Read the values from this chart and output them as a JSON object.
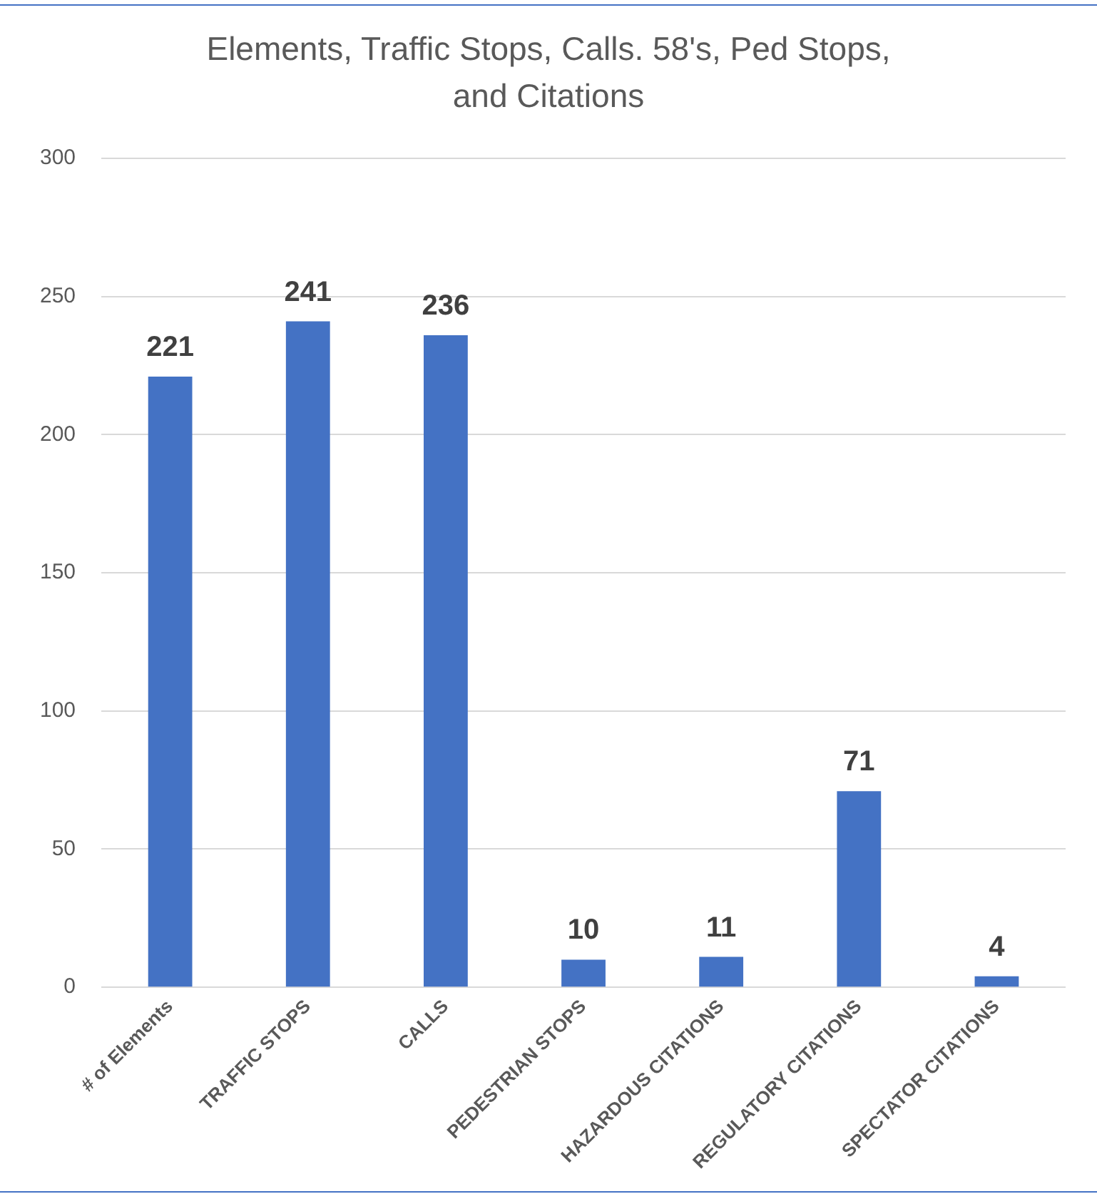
{
  "chart_data": {
    "type": "bar",
    "title": "Elements, Traffic Stops, Calls. 58's, Ped Stops, and Citations",
    "categories": [
      "# of Elements",
      "TRAFFIC STOPS",
      "CALLS",
      "PEDESTRIAN STOPS",
      "HAZARDOUS CITATIONS",
      "REGULATORY CITATIONS",
      "SPECTATOR CITATIONS"
    ],
    "values": [
      221,
      241,
      236,
      10,
      11,
      71,
      4
    ],
    "color": "#4472c4",
    "ylim": [
      0,
      300
    ],
    "yticks": [
      0,
      50,
      100,
      150,
      200,
      250,
      300
    ],
    "grid": "y",
    "data_labels": true
  }
}
